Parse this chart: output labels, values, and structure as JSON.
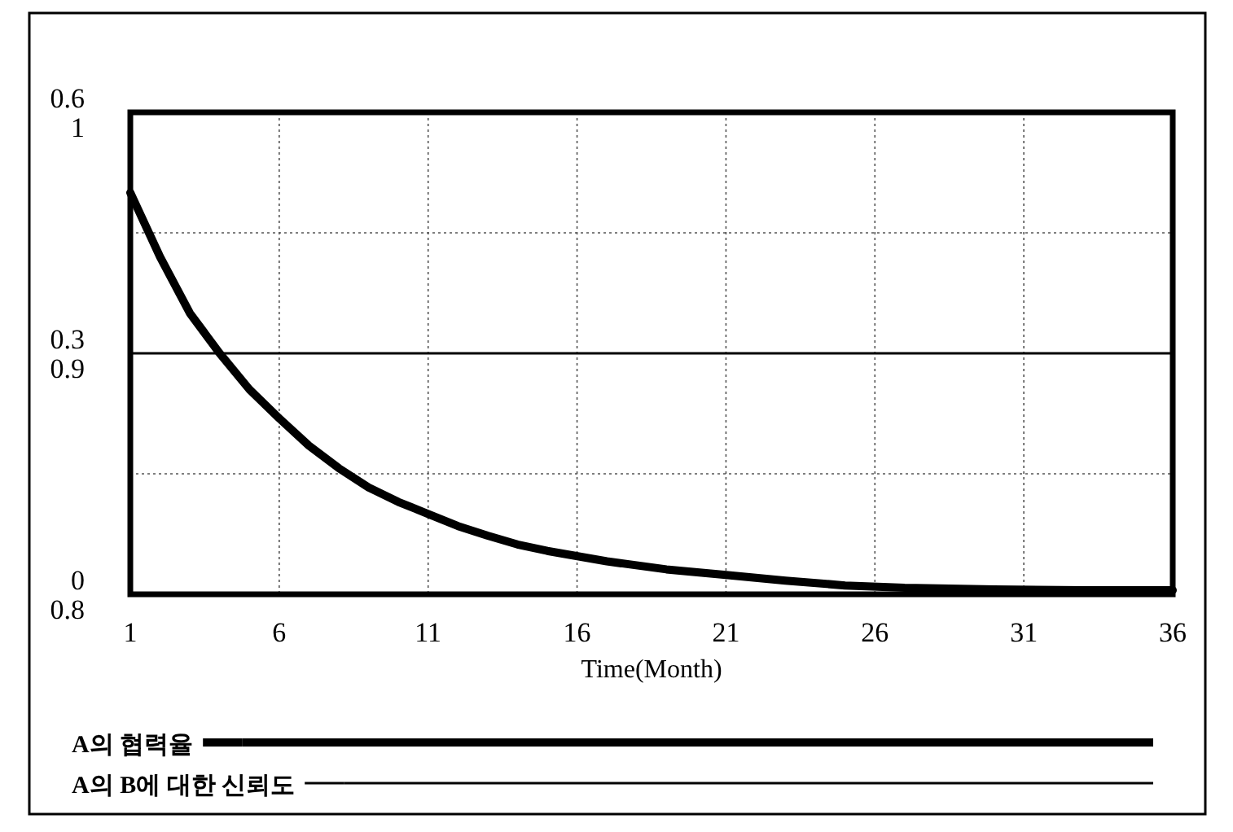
{
  "chart_data": {
    "type": "line",
    "xlabel": "Time(Month)",
    "xlim": [
      1,
      36
    ],
    "xticks": [
      1,
      6,
      11,
      16,
      21,
      26,
      31,
      36
    ],
    "ylim": [
      0,
      0.6
    ],
    "yticks": [
      0,
      {
        "value": 0.15,
        "label": null
      },
      0.3,
      {
        "value": 0.45,
        "label": null
      },
      0.6
    ],
    "y2lim": [
      0.8,
      1
    ],
    "y2ticks": [
      0.8,
      0.9,
      1
    ],
    "grid": true,
    "legend": "bottom",
    "series": [
      {
        "name": "A의 협력율",
        "color": "#000000",
        "x": [
          1,
          2,
          3,
          4,
          5,
          6,
          7,
          8,
          9,
          10,
          11,
          12,
          13,
          14,
          15,
          17,
          19,
          21,
          23,
          25,
          27,
          30,
          33,
          36
        ],
        "values": [
          0.5,
          0.42,
          0.35,
          0.3,
          0.255,
          0.219,
          0.185,
          0.157,
          0.133,
          0.115,
          0.1,
          0.085,
          0.073,
          0.062,
          0.054,
          0.041,
          0.031,
          0.024,
          0.017,
          0.011,
          0.008,
          0.006,
          0.005,
          0.005
        ]
      },
      {
        "name": "A의 B에 대한 신뢰도",
        "color": "#000000",
        "axis": "y2",
        "x": [
          1,
          36
        ],
        "values": [
          0.9,
          0.9
        ]
      }
    ]
  }
}
